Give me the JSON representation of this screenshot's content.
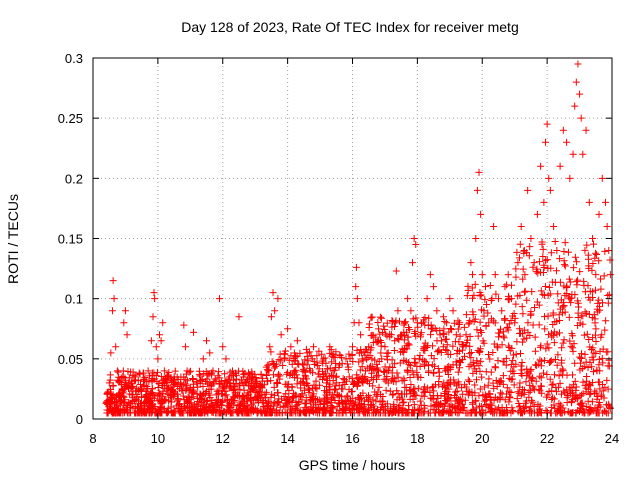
{
  "chart_data": {
    "type": "scatter",
    "title": "Day 128 of 2023, Rate Of TEC Index for receiver metg",
    "xlabel": "GPS time / hours",
    "ylabel": "ROTI / TECUs",
    "xlim": [
      8,
      24
    ],
    "ylim": [
      0,
      0.3
    ],
    "xticks": [
      8,
      10,
      12,
      14,
      16,
      18,
      20,
      22,
      24
    ],
    "yticks": [
      0,
      0.05,
      0.1,
      0.15,
      0.2,
      0.25,
      0.3
    ],
    "xtick_labels": [
      "8",
      "10",
      "12",
      "14",
      "16",
      "18",
      "20",
      "22",
      "24"
    ],
    "ytick_labels": [
      "0",
      "0.05",
      "0.1",
      "0.15",
      "0.2",
      "0.25",
      "0.3"
    ],
    "grid": true,
    "marker": "+",
    "color": "#ff0000",
    "points": [
      [
        8.45,
        0.012
      ],
      [
        8.5,
        0.03
      ],
      [
        8.55,
        0.055
      ],
      [
        8.6,
        0.09
      ],
      [
        8.62,
        0.115
      ],
      [
        8.65,
        0.1
      ],
      [
        8.7,
        0.06
      ],
      [
        8.75,
        0.04
      ],
      [
        8.8,
        0.02
      ],
      [
        8.85,
        0.015
      ],
      [
        8.9,
        0.025
      ],
      [
        8.95,
        0.08
      ],
      [
        9.0,
        0.09
      ],
      [
        9.05,
        0.07
      ],
      [
        9.1,
        0.03
      ],
      [
        9.2,
        0.02
      ],
      [
        9.3,
        0.035
      ],
      [
        9.4,
        0.015
      ],
      [
        9.5,
        0.025
      ],
      [
        9.6,
        0.018
      ],
      [
        9.7,
        0.04
      ],
      [
        9.8,
        0.065
      ],
      [
        9.85,
        0.085
      ],
      [
        9.88,
        0.105
      ],
      [
        9.9,
        0.1
      ],
      [
        9.95,
        0.06
      ],
      [
        10.0,
        0.05
      ],
      [
        10.05,
        0.07
      ],
      [
        10.1,
        0.065
      ],
      [
        10.15,
        0.08
      ],
      [
        10.2,
        0.04
      ],
      [
        10.3,
        0.025
      ],
      [
        10.4,
        0.02
      ],
      [
        10.5,
        0.035
      ],
      [
        10.6,
        0.015
      ],
      [
        10.7,
        0.03
      ],
      [
        10.8,
        0.078
      ],
      [
        10.85,
        0.06
      ],
      [
        10.9,
        0.04
      ],
      [
        11.0,
        0.025
      ],
      [
        11.1,
        0.072
      ],
      [
        11.2,
        0.03
      ],
      [
        11.3,
        0.02
      ],
      [
        11.4,
        0.05
      ],
      [
        11.5,
        0.065
      ],
      [
        11.6,
        0.055
      ],
      [
        11.7,
        0.04
      ],
      [
        11.8,
        0.02
      ],
      [
        11.9,
        0.1
      ],
      [
        12.0,
        0.06
      ],
      [
        12.1,
        0.05
      ],
      [
        12.2,
        0.03
      ],
      [
        12.3,
        0.04
      ],
      [
        12.4,
        0.02
      ],
      [
        12.5,
        0.085
      ],
      [
        12.6,
        0.03
      ],
      [
        12.8,
        0.02
      ],
      [
        13.0,
        0.03
      ],
      [
        13.2,
        0.02
      ],
      [
        13.4,
        0.04
      ],
      [
        13.45,
        0.06
      ],
      [
        13.5,
        0.085
      ],
      [
        13.55,
        0.105
      ],
      [
        13.6,
        0.09
      ],
      [
        13.7,
        0.1
      ],
      [
        13.8,
        0.07
      ],
      [
        13.9,
        0.05
      ],
      [
        14.0,
        0.075
      ],
      [
        14.1,
        0.06
      ],
      [
        14.2,
        0.04
      ],
      [
        14.3,
        0.065
      ],
      [
        14.4,
        0.03
      ],
      [
        14.5,
        0.045
      ],
      [
        14.6,
        0.055
      ],
      [
        14.7,
        0.04
      ],
      [
        14.8,
        0.06
      ],
      [
        14.9,
        0.025
      ],
      [
        15.0,
        0.035
      ],
      [
        15.1,
        0.05
      ],
      [
        15.2,
        0.03
      ],
      [
        15.3,
        0.06
      ],
      [
        15.4,
        0.04
      ],
      [
        15.5,
        0.03
      ],
      [
        15.6,
        0.045
      ],
      [
        15.7,
        0.025
      ],
      [
        15.8,
        0.05
      ],
      [
        15.9,
        0.035
      ],
      [
        16.0,
        0.06
      ],
      [
        16.05,
        0.08
      ],
      [
        16.1,
        0.11
      ],
      [
        16.12,
        0.126
      ],
      [
        16.15,
        0.1
      ],
      [
        16.2,
        0.08
      ],
      [
        16.25,
        0.07
      ],
      [
        16.3,
        0.05
      ],
      [
        16.4,
        0.04
      ],
      [
        16.5,
        0.06
      ],
      [
        16.6,
        0.05
      ],
      [
        16.7,
        0.068
      ],
      [
        16.8,
        0.04
      ],
      [
        16.9,
        0.05
      ],
      [
        17.0,
        0.06
      ],
      [
        17.1,
        0.055
      ],
      [
        17.2,
        0.07
      ],
      [
        17.3,
        0.065
      ],
      [
        17.35,
        0.123
      ],
      [
        17.4,
        0.09
      ],
      [
        17.5,
        0.07
      ],
      [
        17.6,
        0.08
      ],
      [
        17.7,
        0.1
      ],
      [
        17.8,
        0.09
      ],
      [
        17.85,
        0.13
      ],
      [
        17.9,
        0.15
      ],
      [
        17.95,
        0.145
      ],
      [
        18.0,
        0.08
      ],
      [
        18.1,
        0.07
      ],
      [
        18.2,
        0.06
      ],
      [
        18.3,
        0.1
      ],
      [
        18.4,
        0.12
      ],
      [
        18.5,
        0.11
      ],
      [
        18.6,
        0.09
      ],
      [
        18.7,
        0.07
      ],
      [
        18.8,
        0.06
      ],
      [
        18.9,
        0.08
      ],
      [
        19.0,
        0.1
      ],
      [
        19.1,
        0.09
      ],
      [
        19.2,
        0.07
      ],
      [
        19.3,
        0.08
      ],
      [
        19.4,
        0.06
      ],
      [
        19.5,
        0.07
      ],
      [
        19.6,
        0.08
      ],
      [
        19.65,
        0.13
      ],
      [
        19.7,
        0.12
      ],
      [
        19.8,
        0.15
      ],
      [
        19.85,
        0.19
      ],
      [
        19.9,
        0.205
      ],
      [
        19.95,
        0.17
      ],
      [
        20.0,
        0.12
      ],
      [
        20.05,
        0.09
      ],
      [
        20.1,
        0.11
      ],
      [
        20.2,
        0.08
      ],
      [
        20.3,
        0.1
      ],
      [
        20.35,
        0.16
      ],
      [
        20.4,
        0.12
      ],
      [
        20.5,
        0.1
      ],
      [
        20.6,
        0.09
      ],
      [
        20.7,
        0.11
      ],
      [
        20.8,
        0.12
      ],
      [
        20.9,
        0.1
      ],
      [
        21.0,
        0.08
      ],
      [
        21.1,
        0.13
      ],
      [
        21.2,
        0.16
      ],
      [
        21.3,
        0.14
      ],
      [
        21.4,
        0.19
      ],
      [
        21.5,
        0.15
      ],
      [
        21.6,
        0.13
      ],
      [
        21.7,
        0.17
      ],
      [
        21.8,
        0.21
      ],
      [
        21.9,
        0.18
      ],
      [
        21.95,
        0.23
      ],
      [
        22.0,
        0.245
      ],
      [
        22.05,
        0.2
      ],
      [
        22.1,
        0.19
      ],
      [
        22.2,
        0.16
      ],
      [
        22.3,
        0.14
      ],
      [
        22.4,
        0.21
      ],
      [
        22.5,
        0.24
      ],
      [
        22.6,
        0.23
      ],
      [
        22.7,
        0.2
      ],
      [
        22.8,
        0.22
      ],
      [
        22.85,
        0.26
      ],
      [
        22.9,
        0.28
      ],
      [
        22.95,
        0.295
      ],
      [
        23.0,
        0.27
      ],
      [
        23.05,
        0.25
      ],
      [
        23.1,
        0.22
      ],
      [
        23.2,
        0.24
      ],
      [
        23.3,
        0.18
      ],
      [
        23.4,
        0.15
      ],
      [
        23.5,
        0.12
      ],
      [
        23.6,
        0.17
      ],
      [
        23.7,
        0.2
      ],
      [
        23.8,
        0.18
      ],
      [
        23.85,
        0.16
      ],
      [
        23.9,
        0.14
      ],
      [
        23.95,
        0.12
      ]
    ]
  }
}
